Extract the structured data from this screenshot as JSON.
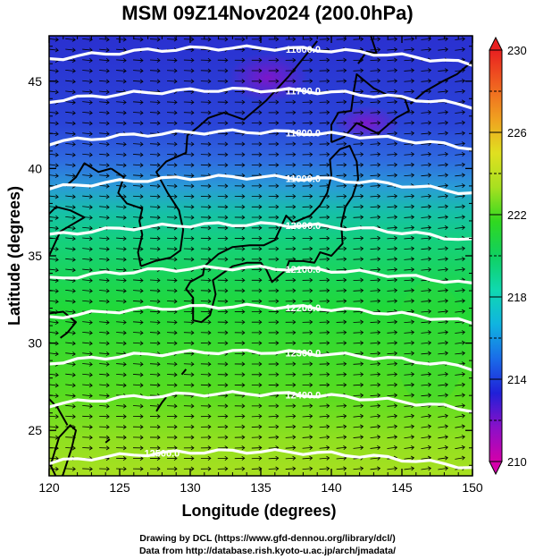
{
  "title": "MSM 09Z14Nov2024 (200.0hPa)",
  "x_axis": {
    "label": "Longitude (degrees)",
    "range": [
      120,
      150
    ],
    "ticks": [
      120,
      125,
      130,
      135,
      140,
      145,
      150
    ]
  },
  "y_axis": {
    "label": "Latitude  (degrees)",
    "range": [
      22.4,
      47.6
    ],
    "ticks": [
      25,
      30,
      35,
      40,
      45
    ]
  },
  "colorbar": {
    "min": 210,
    "max": 230,
    "tick_labels": [
      "230",
      "226",
      "222",
      "218",
      "214",
      "210"
    ],
    "tick_values": [
      230,
      226,
      222,
      218,
      214,
      210
    ],
    "colors": [
      "#d400aa",
      "#8a10c8",
      "#2020d8",
      "#1a6ce8",
      "#10b4e0",
      "#10d8b0",
      "#10d060",
      "#30d820",
      "#a8e020",
      "#e0e020",
      "#f0a020",
      "#f06020",
      "#e82020"
    ]
  },
  "contours": {
    "field": "geopotential height",
    "lines": [
      {
        "label": "11600.0",
        "lat_at_135": 46.9
      },
      {
        "label": "11700.0",
        "lat_at_135": 44.5
      },
      {
        "label": "11800.0",
        "lat_at_135": 42.1
      },
      {
        "label": "11900.0",
        "lat_at_135": 39.5
      },
      {
        "label": "12000.0",
        "lat_at_135": 36.8
      },
      {
        "label": "12100.0",
        "lat_at_135": 34.3
      },
      {
        "label": "12200.0",
        "lat_at_135": 32.1
      },
      {
        "label": "12300.0",
        "lat_at_135": 29.5
      },
      {
        "label": "12400.0",
        "lat_at_135": 27.1
      },
      {
        "label": "12500.0",
        "lat_at_135": 23.8
      }
    ]
  },
  "colors": {
    "contour": "#ffffff",
    "coastline": "#000000",
    "wind_vector": "#000000",
    "frame": "#000000"
  },
  "credits": {
    "line1": "Drawing by DCL (https://www.gfd-dennou.org/library/dcl/)",
    "line2": "Data from http://database.rish.kyoto-u.ac.jp/arch/jmadata/"
  }
}
